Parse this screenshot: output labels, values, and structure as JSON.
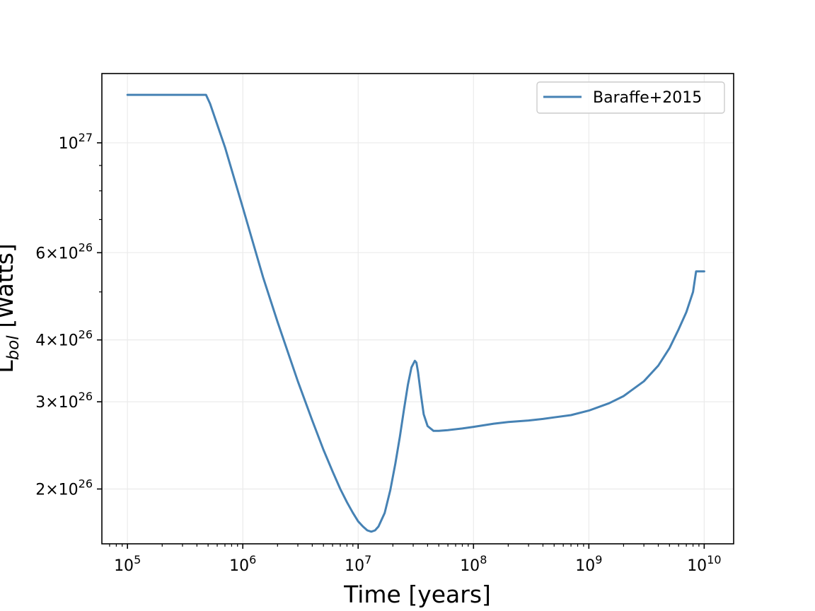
{
  "chart_data": {
    "type": "line",
    "xscale": "log",
    "yscale": "log",
    "xlim": [
      60000,
      18000000000
    ],
    "ylim": [
      1.55e+26,
      1.38e+27
    ],
    "xlabel": "Time [years]",
    "ylabel_main": "L",
    "ylabel_sub": "bol",
    "ylabel_unit": " [Watts]",
    "grid": true,
    "legend_position": "upper right",
    "line_color": "#4682b4",
    "x_ticks": [
      {
        "value": 100000,
        "base": "10",
        "exp": "5"
      },
      {
        "value": 1000000,
        "base": "10",
        "exp": "6"
      },
      {
        "value": 10000000,
        "base": "10",
        "exp": "7"
      },
      {
        "value": 100000000,
        "base": "10",
        "exp": "8"
      },
      {
        "value": 1000000000,
        "base": "10",
        "exp": "9"
      },
      {
        "value": 10000000000,
        "base": "10",
        "exp": "10"
      }
    ],
    "y_ticks": [
      {
        "value": 2e+26,
        "mant": "2",
        "times": "×",
        "base": "10",
        "exp": "26"
      },
      {
        "value": 3e+26,
        "mant": "3",
        "times": "×",
        "base": "10",
        "exp": "26"
      },
      {
        "value": 4e+26,
        "mant": "4",
        "times": "×",
        "base": "10",
        "exp": "26"
      },
      {
        "value": 6e+26,
        "mant": "6",
        "times": "×",
        "base": "10",
        "exp": "26"
      },
      {
        "value": 1e+27,
        "mant": "",
        "times": "",
        "base": "10",
        "exp": "27"
      }
    ],
    "y_minor_ticks": [
      5e+26,
      7e+26,
      8e+26,
      9e+26
    ],
    "series": [
      {
        "name": "Baraffe+2015",
        "x": [
          100000,
          200000,
          480000,
          520000,
          700000,
          1000000,
          1500000,
          2000000,
          3000000,
          4000000,
          5000000,
          6000000,
          7000000,
          8000000,
          9000000,
          10000000,
          11000000,
          12000000,
          13000000,
          14000000,
          15000000,
          17000000,
          19000000,
          21000000,
          23000000,
          25000000,
          27000000,
          29000000,
          31000000,
          32000000,
          33000000,
          35000000,
          37000000,
          40000000,
          45000000,
          50000000,
          60000000,
          80000000,
          100000000,
          150000000,
          200000000,
          300000000,
          400000000,
          500000000,
          700000000,
          1000000000,
          1500000000,
          2000000000,
          3000000000,
          4000000000,
          5000000000,
          6000000000,
          7000000000,
          8000000000,
          8500000000,
          10000000000
        ],
        "y": [
          1.25e+27,
          1.25e+27,
          1.25e+27,
          1.2e+27,
          9.8e+26,
          7.4e+26,
          5.35e+26,
          4.35e+26,
          3.3e+26,
          2.75e+26,
          2.4e+26,
          2.17e+26,
          2e+26,
          1.88e+26,
          1.79e+26,
          1.72e+26,
          1.68e+26,
          1.65e+26,
          1.64e+26,
          1.65e+26,
          1.68e+26,
          1.79e+26,
          1.99e+26,
          2.25e+26,
          2.55e+26,
          2.9e+26,
          3.25e+26,
          3.52e+26,
          3.63e+26,
          3.6e+26,
          3.45e+26,
          3.1e+26,
          2.83e+26,
          2.68e+26,
          2.62e+26,
          2.62e+26,
          2.63e+26,
          2.65e+26,
          2.67e+26,
          2.71e+26,
          2.73e+26,
          2.75e+26,
          2.77e+26,
          2.79e+26,
          2.82e+26,
          2.88e+26,
          2.98e+26,
          3.08e+26,
          3.3e+26,
          3.55e+26,
          3.85e+26,
          4.2e+26,
          4.55e+26,
          5e+26,
          5.5e+26,
          5.5e+26
        ]
      }
    ]
  }
}
